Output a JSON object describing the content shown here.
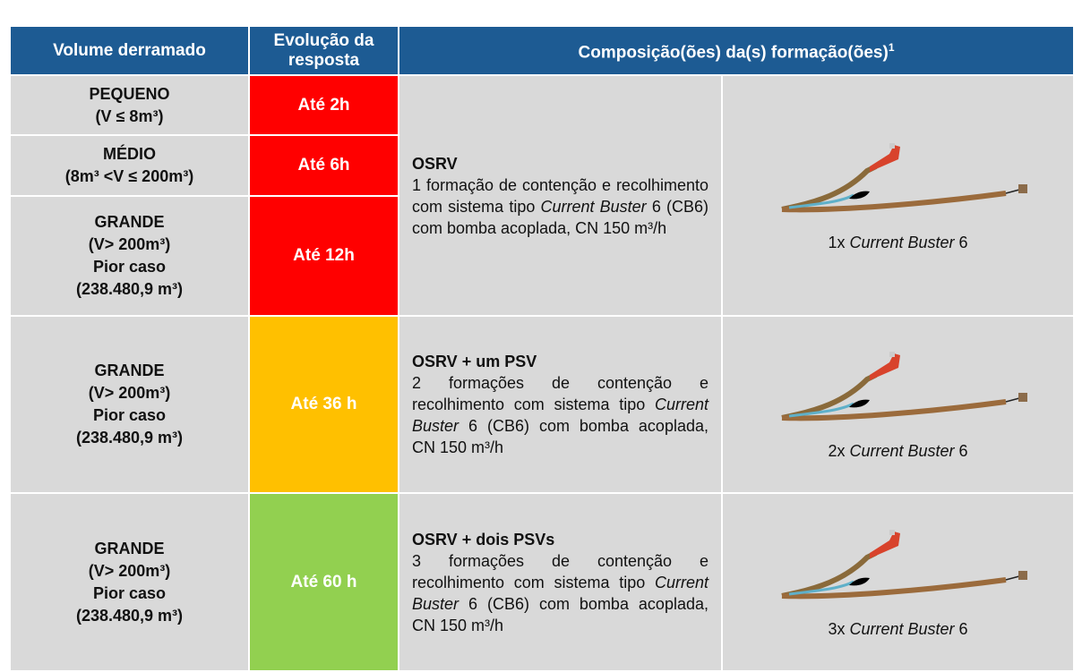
{
  "table": {
    "header": [
      "Volume derramado",
      "Evolução da resposta",
      "Composição(ões) da(s) formação(ões)"
    ],
    "header_note": "1",
    "groups": [
      {
        "volumes": [
          {
            "lines": [
              "PEQUENO",
              "(V ≤ 8m³)"
            ],
            "time": "Até 2h",
            "color": "#ff0000"
          },
          {
            "lines": [
              "MÉDIO",
              "(8m³ <V ≤ 200m³)"
            ],
            "time": "Até 6h",
            "color": "#ff0000"
          },
          {
            "lines": [
              "GRANDE",
              "(V> 200m³)",
              "Pior caso",
              "(238.480,9 m³)"
            ],
            "time": "Até 12h",
            "color": "#ff0000"
          }
        ],
        "composition": {
          "title": "OSRV",
          "description": [
            {
              "text": "1 formação de contenção e recolhimento com sistema tipo "
            },
            {
              "text": "Current Buster",
              "italic": true
            },
            {
              "text": " 6 (CB6) com bomba acoplada, CN 150 m³/h"
            }
          ]
        },
        "caption": [
          {
            "text": "1x "
          },
          {
            "text": "Current Buster",
            "italic": true
          },
          {
            "text": " 6"
          }
        ]
      },
      {
        "volumes": [
          {
            "lines": [
              "GRANDE",
              "(V> 200m³)",
              "Pior caso",
              "(238.480,9 m³)"
            ],
            "time": "Até 36 h",
            "color": "#ffc000"
          }
        ],
        "composition": {
          "title": "OSRV + um PSV",
          "description": [
            {
              "text": "2 formações de contenção e recolhimento com sistema tipo "
            },
            {
              "text": "Current Buster",
              "italic": true
            },
            {
              "text": " 6 (CB6) com bomba acoplada, CN 150 m³/h"
            }
          ]
        },
        "caption": [
          {
            "text": "2x "
          },
          {
            "text": "Current Buster",
            "italic": true
          },
          {
            "text": " 6"
          }
        ]
      },
      {
        "volumes": [
          {
            "lines": [
              "GRANDE",
              "(V> 200m³)",
              "Pior caso",
              "(238.480,9 m³)"
            ],
            "time": "Até 60 h",
            "color": "#92d050"
          }
        ],
        "composition": {
          "title": "OSRV + dois PSVs",
          "description": [
            {
              "text": "3 formações de contenção e recolhimento com sistema tipo "
            },
            {
              "text": "Current Buster",
              "italic": true
            },
            {
              "text": " 6 (CB6) com bomba acoplada, CN 150 m³/h"
            }
          ]
        },
        "caption": [
          {
            "text": "3x "
          },
          {
            "text": "Current Buster",
            "italic": true
          },
          {
            "text": " 6"
          }
        ]
      }
    ]
  }
}
